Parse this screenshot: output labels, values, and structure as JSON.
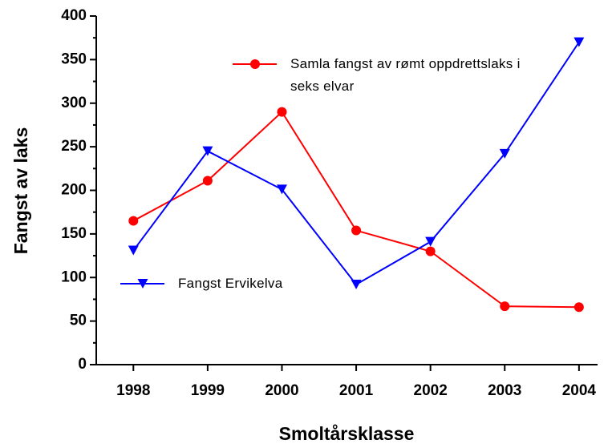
{
  "chart_data": {
    "type": "line",
    "xlabel": "Smoltårsklasse",
    "ylabel": "Fangst av laks",
    "x": [
      1998,
      1999,
      2000,
      2001,
      2002,
      2003,
      2004
    ],
    "series": [
      {
        "name": "Samla fangst av rømt oppdrettslaks i seks elvar",
        "color": "#ff0000",
        "marker": "circle",
        "values": [
          165,
          211,
          290,
          154,
          130,
          67,
          66
        ]
      },
      {
        "name": "Fangst Ervikelva",
        "color": "#0000ff",
        "marker": "triangle-down",
        "values": [
          131,
          245,
          201,
          92,
          141,
          242,
          370
        ]
      }
    ],
    "xlim": [
      1997.5,
      2004.25
    ],
    "xticks": [
      1998,
      1999,
      2000,
      2001,
      2002,
      2003,
      2004
    ],
    "ylim": [
      0,
      400
    ],
    "yticks": [
      0,
      50,
      100,
      150,
      200,
      250,
      300,
      350,
      400
    ],
    "yminorticks": [
      25,
      75,
      125,
      175,
      225,
      275,
      325,
      375
    ],
    "grid": false
  }
}
